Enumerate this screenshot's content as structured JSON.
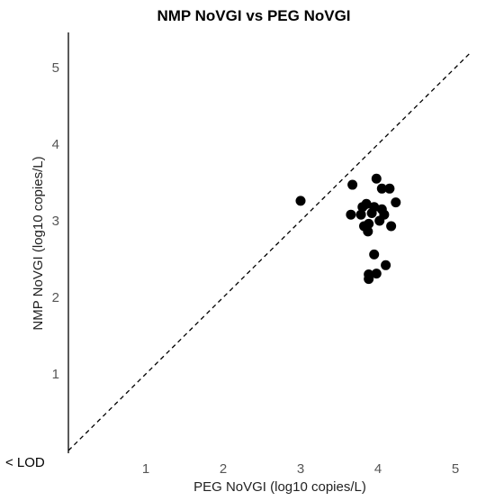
{
  "chart_data": {
    "type": "scatter",
    "title": "NMP NoVGI vs PEG NoVGI",
    "xlabel": "PEG NoVGI (log10 copies/L)",
    "ylabel": "NMP NoVGI (log10 copies/L)",
    "xlim": [
      0,
      5.2
    ],
    "ylim": [
      0,
      5.3
    ],
    "xticks": [
      1,
      2,
      3,
      4,
      5
    ],
    "yticks": [
      1,
      2,
      3,
      4,
      5
    ],
    "lod_label": "< LOD",
    "reference_line": "y = x (dashed)",
    "grid": false,
    "points": [
      {
        "x": 3.0,
        "y": 3.26
      },
      {
        "x": 3.67,
        "y": 3.47
      },
      {
        "x": 3.98,
        "y": 3.55
      },
      {
        "x": 4.05,
        "y": 3.42
      },
      {
        "x": 4.15,
        "y": 3.42
      },
      {
        "x": 4.23,
        "y": 3.24
      },
      {
        "x": 3.85,
        "y": 3.22
      },
      {
        "x": 3.8,
        "y": 3.18
      },
      {
        "x": 3.95,
        "y": 3.18
      },
      {
        "x": 4.05,
        "y": 3.15
      },
      {
        "x": 3.65,
        "y": 3.08
      },
      {
        "x": 3.78,
        "y": 3.08
      },
      {
        "x": 3.92,
        "y": 3.1
      },
      {
        "x": 4.08,
        "y": 3.08
      },
      {
        "x": 3.88,
        "y": 2.96
      },
      {
        "x": 4.02,
        "y": 3.0
      },
      {
        "x": 3.82,
        "y": 2.93
      },
      {
        "x": 4.17,
        "y": 2.93
      },
      {
        "x": 3.87,
        "y": 2.86
      },
      {
        "x": 3.95,
        "y": 2.56
      },
      {
        "x": 4.1,
        "y": 2.42
      },
      {
        "x": 3.88,
        "y": 2.3
      },
      {
        "x": 3.98,
        "y": 2.31
      },
      {
        "x": 3.88,
        "y": 2.24
      }
    ]
  }
}
